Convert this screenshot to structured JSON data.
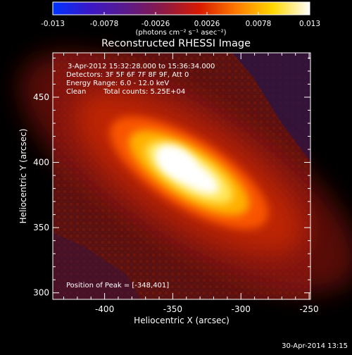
{
  "colorbar": {
    "tick_labels": [
      "-0.013",
      "-0.0078",
      "-0.0026",
      "0.0026",
      "0.0078",
      "0.013"
    ],
    "unit_label": "(photons cm⁻² s⁻¹ asec⁻²)",
    "range": [
      -0.013,
      0.013
    ]
  },
  "info": {
    "line1": "3-Apr-2012 15:32:28.000 to 15:36:34.000",
    "line2": "Detectors: 3F 5F 6F 7F 8F 9F, Att 0",
    "line3": "Energy Range: 6.0 - 12.0 keV",
    "line4_a": "Clean",
    "line4_b": "Total counts: 5.25E+04"
  },
  "peak_text": "Position of Peak = [-348,401]",
  "footer_date": "30-Apr-2014 13:15",
  "chart_data": {
    "type": "heatmap",
    "title": "Reconstructed RHESSI Image",
    "xlabel": "Heliocentric X (arcsec)",
    "ylabel": "Heliocentric Y (arcsec)",
    "xlim": [
      -438,
      -249
    ],
    "ylim": [
      295,
      484
    ],
    "x_ticks": [
      -400,
      -350,
      -300,
      -250
    ],
    "y_ticks": [
      300,
      350,
      400,
      450
    ],
    "x_tick_labels": [
      "-400",
      "-350",
      "-300",
      "-250"
    ],
    "y_tick_labels": [
      "300",
      "350",
      "400",
      "450"
    ],
    "peak": {
      "x": -348,
      "y": 401
    },
    "source": {
      "center_x": -338,
      "center_y": 392,
      "major_axis": 46,
      "minor_axis": 18,
      "angle_deg": -32
    },
    "colormap": "blue-purple-red-yellow-white",
    "colormap_stops": [
      "#0033ff",
      "#3a18c8",
      "#5b1b8a",
      "#8c1a45",
      "#d81a00",
      "#ff7a00",
      "#ffd800",
      "#ffffff"
    ],
    "grid": false,
    "legend": "colorbar-top"
  }
}
